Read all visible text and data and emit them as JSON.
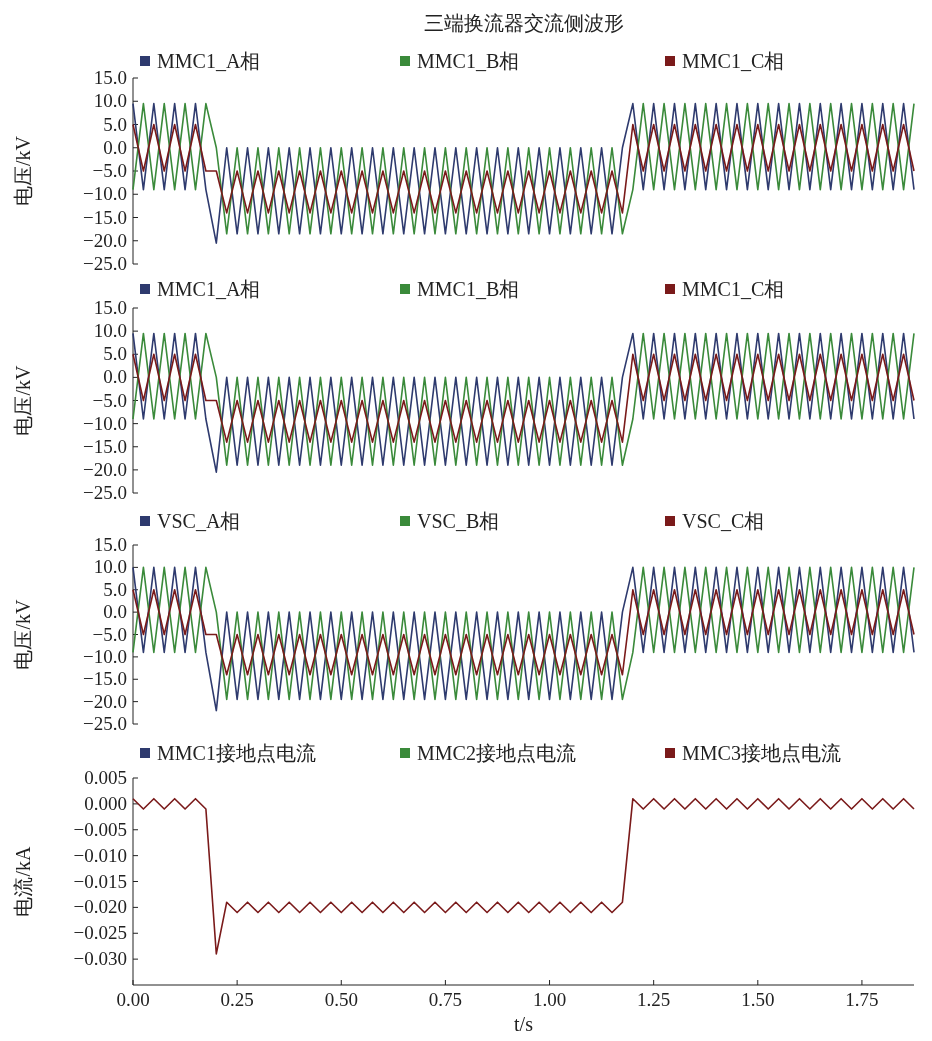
{
  "chart_data": [
    {
      "type": "line",
      "title": "三端换流器交流侧波形",
      "ylabel": "电压/kV",
      "ylim": [
        -25,
        15
      ],
      "tick_labels": "y",
      "legend": "top",
      "grid": false,
      "yticks": [
        {
          "value": 15,
          "label": "15.0"
        },
        {
          "value": 10,
          "label": "10.0"
        },
        {
          "value": 5,
          "label": "5.0"
        },
        {
          "value": 0,
          "label": "0.0"
        },
        {
          "value": -5,
          "label": "−5.0"
        },
        {
          "value": -10,
          "label": "−10.0"
        },
        {
          "value": -15,
          "label": "−15.0"
        },
        {
          "value": -20,
          "label": "−20.0"
        },
        {
          "value": -25,
          "label": "−25.0"
        }
      ],
      "x": [
        0,
        0.025,
        0.05,
        0.075,
        0.1,
        0.125,
        0.15,
        0.175,
        0.2,
        0.225,
        0.25,
        0.275,
        0.3,
        0.325,
        0.35,
        0.375,
        0.4,
        0.425,
        0.45,
        0.475,
        0.5,
        0.525,
        0.55,
        0.575,
        0.6,
        0.625,
        0.65,
        0.675,
        0.7,
        0.725,
        0.75,
        0.775,
        0.8,
        0.825,
        0.85,
        0.875,
        0.9,
        0.925,
        0.95,
        0.975,
        1,
        1.025,
        1.05,
        1.075,
        1.1,
        1.125,
        1.15,
        1.175,
        1.2,
        1.225,
        1.25,
        1.275,
        1.3,
        1.325,
        1.35,
        1.375,
        1.4,
        1.425,
        1.45,
        1.475,
        1.5,
        1.525,
        1.55,
        1.575,
        1.6,
        1.625,
        1.65,
        1.675,
        1.7,
        1.725,
        1.75,
        1.775,
        1.8,
        1.825,
        1.85,
        1.875
      ],
      "series": [
        {
          "name": "MMC1_A相",
          "color": "#2e3a6e",
          "values": [
            9.5,
            -9,
            9.5,
            -9,
            9.5,
            -9,
            9.5,
            -9,
            -20.5,
            0,
            -18.5,
            0,
            -18.5,
            0,
            -18.5,
            0,
            -18.5,
            0,
            -18.5,
            0,
            -18.5,
            0,
            -18.5,
            0,
            -18.5,
            0,
            -18.5,
            0,
            -18.5,
            0,
            -18.5,
            0,
            -18.5,
            0,
            -18.5,
            0,
            -18.5,
            0,
            -18.5,
            0,
            -18.5,
            0,
            -18.5,
            0,
            -18.5,
            0,
            -18.5,
            0,
            9.5,
            -9,
            9.5,
            -9,
            9.5,
            -9,
            9.5,
            -9,
            9.5,
            -9,
            9.5,
            -9,
            9.5,
            -9,
            9.5,
            -9,
            9.5,
            -9,
            9.5,
            -9,
            9.5,
            -9,
            9.5,
            -9,
            9.5,
            -9,
            9.5,
            -9
          ]
        },
        {
          "name": "MMC1_B相",
          "color": "#3a8a3a",
          "values": [
            -9,
            9.5,
            -9,
            9.5,
            -9,
            9.5,
            -9,
            9.5,
            0,
            -18.5,
            0,
            -18.5,
            0,
            -18.5,
            0,
            -18.5,
            0,
            -18.5,
            0,
            -18.5,
            0,
            -18.5,
            0,
            -18.5,
            0,
            -18.5,
            0,
            -18.5,
            0,
            -18.5,
            0,
            -18.5,
            0,
            -18.5,
            0,
            -18.5,
            0,
            -18.5,
            0,
            -18.5,
            0,
            -18.5,
            0,
            -18.5,
            0,
            -18.5,
            0,
            -18.5,
            -9,
            9.5,
            -9,
            9.5,
            -9,
            9.5,
            -9,
            9.5,
            -9,
            9.5,
            -9,
            9.5,
            -9,
            9.5,
            -9,
            9.5,
            -9,
            9.5,
            -9,
            9.5,
            -9,
            9.5,
            -9,
            9.5,
            -9,
            9.5,
            -9,
            9.5
          ]
        },
        {
          "name": "MMC1_C相",
          "color": "#7a1a1a",
          "values": [
            5,
            -5,
            5,
            -5,
            5,
            -5,
            5,
            -5,
            -5,
            -14,
            -5,
            -14,
            -5,
            -14,
            -5,
            -14,
            -5,
            -14,
            -5,
            -14,
            -5,
            -14,
            -5,
            -14,
            -5,
            -14,
            -5,
            -14,
            -5,
            -14,
            -5,
            -14,
            -5,
            -14,
            -5,
            -14,
            -5,
            -14,
            -5,
            -14,
            -5,
            -14,
            -5,
            -14,
            -5,
            -14,
            -5,
            -14,
            5,
            -5,
            5,
            -5,
            5,
            -5,
            5,
            -5,
            5,
            -5,
            5,
            -5,
            5,
            -5,
            5,
            -5,
            5,
            -5,
            5,
            -5,
            5,
            -5,
            5,
            -5,
            5,
            -5,
            5,
            -5
          ]
        }
      ]
    },
    {
      "type": "line",
      "ylabel": "电压/kV",
      "ylim": [
        -25,
        15
      ],
      "tick_labels": "y",
      "legend": "top",
      "grid": false,
      "yticks": [
        {
          "value": 15,
          "label": "15.0"
        },
        {
          "value": 10,
          "label": "10.0"
        },
        {
          "value": 5,
          "label": "5.0"
        },
        {
          "value": 0,
          "label": "0.0"
        },
        {
          "value": -5,
          "label": "−5.0"
        },
        {
          "value": -10,
          "label": "−10.0"
        },
        {
          "value": -15,
          "label": "−15.0"
        },
        {
          "value": -20,
          "label": "−20.0"
        },
        {
          "value": -25,
          "label": "−25.0"
        }
      ],
      "x": [
        0,
        0.025,
        0.05,
        0.075,
        0.1,
        0.125,
        0.15,
        0.175,
        0.2,
        0.225,
        0.25,
        0.275,
        0.3,
        0.325,
        0.35,
        0.375,
        0.4,
        0.425,
        0.45,
        0.475,
        0.5,
        0.525,
        0.55,
        0.575,
        0.6,
        0.625,
        0.65,
        0.675,
        0.7,
        0.725,
        0.75,
        0.775,
        0.8,
        0.825,
        0.85,
        0.875,
        0.9,
        0.925,
        0.95,
        0.975,
        1,
        1.025,
        1.05,
        1.075,
        1.1,
        1.125,
        1.15,
        1.175,
        1.2,
        1.225,
        1.25,
        1.275,
        1.3,
        1.325,
        1.35,
        1.375,
        1.4,
        1.425,
        1.45,
        1.475,
        1.5,
        1.525,
        1.55,
        1.575,
        1.6,
        1.625,
        1.65,
        1.675,
        1.7,
        1.725,
        1.75,
        1.775,
        1.8,
        1.825,
        1.85,
        1.875
      ],
      "series": [
        {
          "name": "MMC1_A相",
          "color": "#2e3a6e",
          "values": [
            9.5,
            -9,
            9.5,
            -9,
            9.5,
            -9,
            9.5,
            -9,
            -20.5,
            0,
            -19,
            0,
            -19,
            0,
            -19,
            0,
            -19,
            0,
            -19,
            0,
            -19,
            0,
            -19,
            0,
            -19,
            0,
            -19,
            0,
            -19,
            0,
            -19,
            0,
            -19,
            0,
            -19,
            0,
            -19,
            0,
            -19,
            0,
            -19,
            0,
            -19,
            0,
            -19,
            0,
            -19,
            0,
            9.5,
            -9,
            9.5,
            -9,
            9.5,
            -9,
            9.5,
            -9,
            9.5,
            -9,
            9.5,
            -9,
            9.5,
            -9,
            9.5,
            -9,
            9.5,
            -9,
            9.5,
            -9,
            9.5,
            -9,
            9.5,
            -9,
            9.5,
            -9,
            9.5,
            -9
          ]
        },
        {
          "name": "MMC1_B相",
          "color": "#3a8a3a",
          "values": [
            -9,
            9.5,
            -9,
            9.5,
            -9,
            9.5,
            -9,
            9.5,
            0,
            -19,
            0,
            -19,
            0,
            -19,
            0,
            -19,
            0,
            -19,
            0,
            -19,
            0,
            -19,
            0,
            -19,
            0,
            -19,
            0,
            -19,
            0,
            -19,
            0,
            -19,
            0,
            -19,
            0,
            -19,
            0,
            -19,
            0,
            -19,
            0,
            -19,
            0,
            -19,
            0,
            -19,
            0,
            -19,
            -9,
            9.5,
            -9,
            9.5,
            -9,
            9.5,
            -9,
            9.5,
            -9,
            9.5,
            -9,
            9.5,
            -9,
            9.5,
            -9,
            9.5,
            -9,
            9.5,
            -9,
            9.5,
            -9,
            9.5,
            -9,
            9.5,
            -9,
            9.5,
            -9,
            9.5
          ]
        },
        {
          "name": "MMC1_C相",
          "color": "#7a1a1a",
          "values": [
            5,
            -5,
            5,
            -5,
            5,
            -5,
            5,
            -5,
            -5,
            -14,
            -5,
            -14,
            -5,
            -14,
            -5,
            -14,
            -5,
            -14,
            -5,
            -14,
            -5,
            -14,
            -5,
            -14,
            -5,
            -14,
            -5,
            -14,
            -5,
            -14,
            -5,
            -14,
            -5,
            -14,
            -5,
            -14,
            -5,
            -14,
            -5,
            -14,
            -5,
            -14,
            -5,
            -14,
            -5,
            -14,
            -5,
            -14,
            5,
            -5,
            5,
            -5,
            5,
            -5,
            5,
            -5,
            5,
            -5,
            5,
            -5,
            5,
            -5,
            5,
            -5,
            5,
            -5,
            5,
            -5,
            5,
            -5,
            5,
            -5,
            5,
            -5,
            5,
            -5
          ]
        }
      ]
    },
    {
      "type": "line",
      "ylabel": "电压/kV",
      "ylim": [
        -25,
        15
      ],
      "tick_labels": "y",
      "legend": "top",
      "grid": false,
      "yticks": [
        {
          "value": 15,
          "label": "15.0"
        },
        {
          "value": 10,
          "label": "10.0"
        },
        {
          "value": 5,
          "label": "5.0"
        },
        {
          "value": 0,
          "label": "0.0"
        },
        {
          "value": -5,
          "label": "−5.0"
        },
        {
          "value": -10,
          "label": "−10.0"
        },
        {
          "value": -15,
          "label": "−15.0"
        },
        {
          "value": -20,
          "label": "−20.0"
        },
        {
          "value": -25,
          "label": "−25.0"
        }
      ],
      "x": [
        0,
        0.025,
        0.05,
        0.075,
        0.1,
        0.125,
        0.15,
        0.175,
        0.2,
        0.225,
        0.25,
        0.275,
        0.3,
        0.325,
        0.35,
        0.375,
        0.4,
        0.425,
        0.45,
        0.475,
        0.5,
        0.525,
        0.55,
        0.575,
        0.6,
        0.625,
        0.65,
        0.675,
        0.7,
        0.725,
        0.75,
        0.775,
        0.8,
        0.825,
        0.85,
        0.875,
        0.9,
        0.925,
        0.95,
        0.975,
        1,
        1.025,
        1.05,
        1.075,
        1.1,
        1.125,
        1.15,
        1.175,
        1.2,
        1.225,
        1.25,
        1.275,
        1.3,
        1.325,
        1.35,
        1.375,
        1.4,
        1.425,
        1.45,
        1.475,
        1.5,
        1.525,
        1.55,
        1.575,
        1.6,
        1.625,
        1.65,
        1.675,
        1.7,
        1.725,
        1.75,
        1.775,
        1.8,
        1.825,
        1.85,
        1.875
      ],
      "series": [
        {
          "name": "VSC_A相",
          "color": "#2e3a6e",
          "values": [
            10,
            -9,
            10,
            -9,
            10,
            -9,
            10,
            -9,
            -22,
            0,
            -19.5,
            0,
            -19.5,
            0,
            -19.5,
            0,
            -19.5,
            0,
            -19.5,
            0,
            -19.5,
            0,
            -19.5,
            0,
            -19.5,
            0,
            -19.5,
            0,
            -19.5,
            0,
            -19.5,
            0,
            -19.5,
            0,
            -19.5,
            0,
            -19.5,
            0,
            -19.5,
            0,
            -19.5,
            0,
            -19.5,
            0,
            -19.5,
            0,
            -19.5,
            0,
            10,
            -9,
            10,
            -9,
            10,
            -9,
            10,
            -9,
            10,
            -9,
            10,
            -9,
            10,
            -9,
            10,
            -9,
            10,
            -9,
            10,
            -9,
            10,
            -9,
            10,
            -9,
            10,
            -9,
            10,
            -9
          ]
        },
        {
          "name": "VSC_B相",
          "color": "#3a8a3a",
          "values": [
            -9,
            10,
            -9,
            10,
            -9,
            10,
            -9,
            10,
            0,
            -19.5,
            0,
            -19.5,
            0,
            -19.5,
            0,
            -19.5,
            0,
            -19.5,
            0,
            -19.5,
            0,
            -19.5,
            0,
            -19.5,
            0,
            -19.5,
            0,
            -19.5,
            0,
            -19.5,
            0,
            -19.5,
            0,
            -19.5,
            0,
            -19.5,
            0,
            -19.5,
            0,
            -19.5,
            0,
            -19.5,
            0,
            -19.5,
            0,
            -19.5,
            0,
            -19.5,
            -9,
            10,
            -9,
            10,
            -9,
            10,
            -9,
            10,
            -9,
            10,
            -9,
            10,
            -9,
            10,
            -9,
            10,
            -9,
            10,
            -9,
            10,
            -9,
            10,
            -9,
            10,
            -9,
            10,
            -9,
            10
          ]
        },
        {
          "name": "VSC_C相",
          "color": "#7a1a1a",
          "values": [
            5,
            -5,
            5,
            -5,
            5,
            -5,
            5,
            -5,
            -5,
            -14,
            -5,
            -14,
            -5,
            -14,
            -5,
            -14,
            -5,
            -14,
            -5,
            -14,
            -5,
            -14,
            -5,
            -14,
            -5,
            -14,
            -5,
            -14,
            -5,
            -14,
            -5,
            -14,
            -5,
            -14,
            -5,
            -14,
            -5,
            -14,
            -5,
            -14,
            -5,
            -14,
            -5,
            -14,
            -5,
            -14,
            -5,
            -14,
            5,
            -5,
            5,
            -5,
            5,
            -5,
            5,
            -5,
            5,
            -5,
            5,
            -5,
            5,
            -5,
            5,
            -5,
            5,
            -5,
            5,
            -5,
            5,
            -5,
            5,
            -5,
            5,
            -5,
            5,
            -5
          ]
        }
      ]
    },
    {
      "type": "line",
      "ylabel": "电流/kA",
      "xlabel": "t/s",
      "xlim": [
        0,
        1.875
      ],
      "ylim": [
        -0.035,
        0.005
      ],
      "legend": "top",
      "grid": false,
      "xticks": [
        {
          "value": 0,
          "label": "0.00"
        },
        {
          "value": 0.25,
          "label": "0.25"
        },
        {
          "value": 0.5,
          "label": "0.50"
        },
        {
          "value": 0.75,
          "label": "0.75"
        },
        {
          "value": 1,
          "label": "1.00"
        },
        {
          "value": 1.25,
          "label": "1.25"
        },
        {
          "value": 1.5,
          "label": "1.50"
        },
        {
          "value": 1.75,
          "label": "1.75"
        }
      ],
      "yticks": [
        {
          "value": 0.005,
          "label": "0.005"
        },
        {
          "value": 0,
          "label": "0.000"
        },
        {
          "value": -0.005,
          "label": "−0.005"
        },
        {
          "value": -0.01,
          "label": "−0.010"
        },
        {
          "value": -0.015,
          "label": "−0.015"
        },
        {
          "value": -0.02,
          "label": "−0.020"
        },
        {
          "value": -0.025,
          "label": "−0.025"
        },
        {
          "value": -0.03,
          "label": "−0.030"
        }
      ],
      "x": [
        0,
        0.025,
        0.05,
        0.075,
        0.1,
        0.125,
        0.15,
        0.175,
        0.2,
        0.225,
        0.25,
        0.275,
        0.3,
        0.325,
        0.35,
        0.375,
        0.4,
        0.425,
        0.45,
        0.475,
        0.5,
        0.525,
        0.55,
        0.575,
        0.6,
        0.625,
        0.65,
        0.675,
        0.7,
        0.725,
        0.75,
        0.775,
        0.8,
        0.825,
        0.85,
        0.875,
        0.9,
        0.925,
        0.95,
        0.975,
        1,
        1.025,
        1.05,
        1.075,
        1.1,
        1.125,
        1.15,
        1.175,
        1.2,
        1.225,
        1.25,
        1.275,
        1.3,
        1.325,
        1.35,
        1.375,
        1.4,
        1.425,
        1.45,
        1.475,
        1.5,
        1.525,
        1.55,
        1.575,
        1.6,
        1.625,
        1.65,
        1.675,
        1.7,
        1.725,
        1.75,
        1.775,
        1.8,
        1.825,
        1.85,
        1.875
      ],
      "series": [
        {
          "name": "MMC1接地点电流",
          "color": "#2e3a6e",
          "values": [
            null,
            null,
            null,
            null,
            null,
            null,
            null,
            null,
            null,
            null,
            null,
            null,
            null,
            null,
            null,
            null,
            null,
            null,
            null,
            null,
            null,
            null,
            null,
            null,
            null,
            null,
            null,
            null,
            null,
            null,
            null,
            null,
            null,
            null,
            null,
            null,
            null,
            null,
            null,
            null,
            null,
            null,
            null,
            null,
            null,
            null,
            null,
            null,
            null,
            null,
            null,
            null,
            null,
            null,
            null,
            null,
            null,
            null,
            null,
            null,
            null,
            null,
            null,
            null,
            null,
            null,
            null,
            null,
            null,
            null,
            null,
            null,
            null,
            null,
            null,
            null
          ]
        },
        {
          "name": "MMC2接地点电流",
          "color": "#3a8a3a",
          "values": [
            null,
            null,
            null,
            null,
            null,
            null,
            null,
            null,
            null,
            null,
            null,
            null,
            null,
            null,
            null,
            null,
            null,
            null,
            null,
            null,
            null,
            null,
            null,
            null,
            null,
            null,
            null,
            null,
            null,
            null,
            null,
            null,
            null,
            null,
            null,
            null,
            null,
            null,
            null,
            null,
            null,
            null,
            null,
            null,
            null,
            null,
            null,
            null,
            null,
            null,
            null,
            null,
            null,
            null,
            null,
            null,
            null,
            null,
            null,
            null,
            null,
            null,
            null,
            null,
            null,
            null,
            null,
            null,
            null,
            null,
            null,
            null,
            null,
            null,
            null,
            null
          ]
        },
        {
          "name": "MMC3接地点电流",
          "color": "#7a1a1a",
          "values": [
            0.001,
            -0.001,
            0.001,
            -0.001,
            0.001,
            -0.001,
            0.001,
            -0.001,
            -0.029,
            -0.019,
            -0.021,
            -0.019,
            -0.021,
            -0.019,
            -0.021,
            -0.019,
            -0.021,
            -0.019,
            -0.021,
            -0.019,
            -0.021,
            -0.019,
            -0.021,
            -0.019,
            -0.021,
            -0.019,
            -0.021,
            -0.019,
            -0.021,
            -0.019,
            -0.021,
            -0.019,
            -0.021,
            -0.019,
            -0.021,
            -0.019,
            -0.021,
            -0.019,
            -0.021,
            -0.019,
            -0.021,
            -0.019,
            -0.021,
            -0.019,
            -0.021,
            -0.019,
            -0.021,
            -0.019,
            0.001,
            -0.001,
            0.001,
            -0.001,
            0.001,
            -0.001,
            0.001,
            -0.001,
            0.001,
            -0.001,
            0.001,
            -0.001,
            0.001,
            -0.001,
            0.001,
            -0.001,
            0.001,
            -0.001,
            0.001,
            -0.001,
            0.001,
            -0.001,
            0.001,
            -0.001,
            0.001,
            -0.001,
            0.001,
            -0.001
          ]
        }
      ]
    }
  ]
}
